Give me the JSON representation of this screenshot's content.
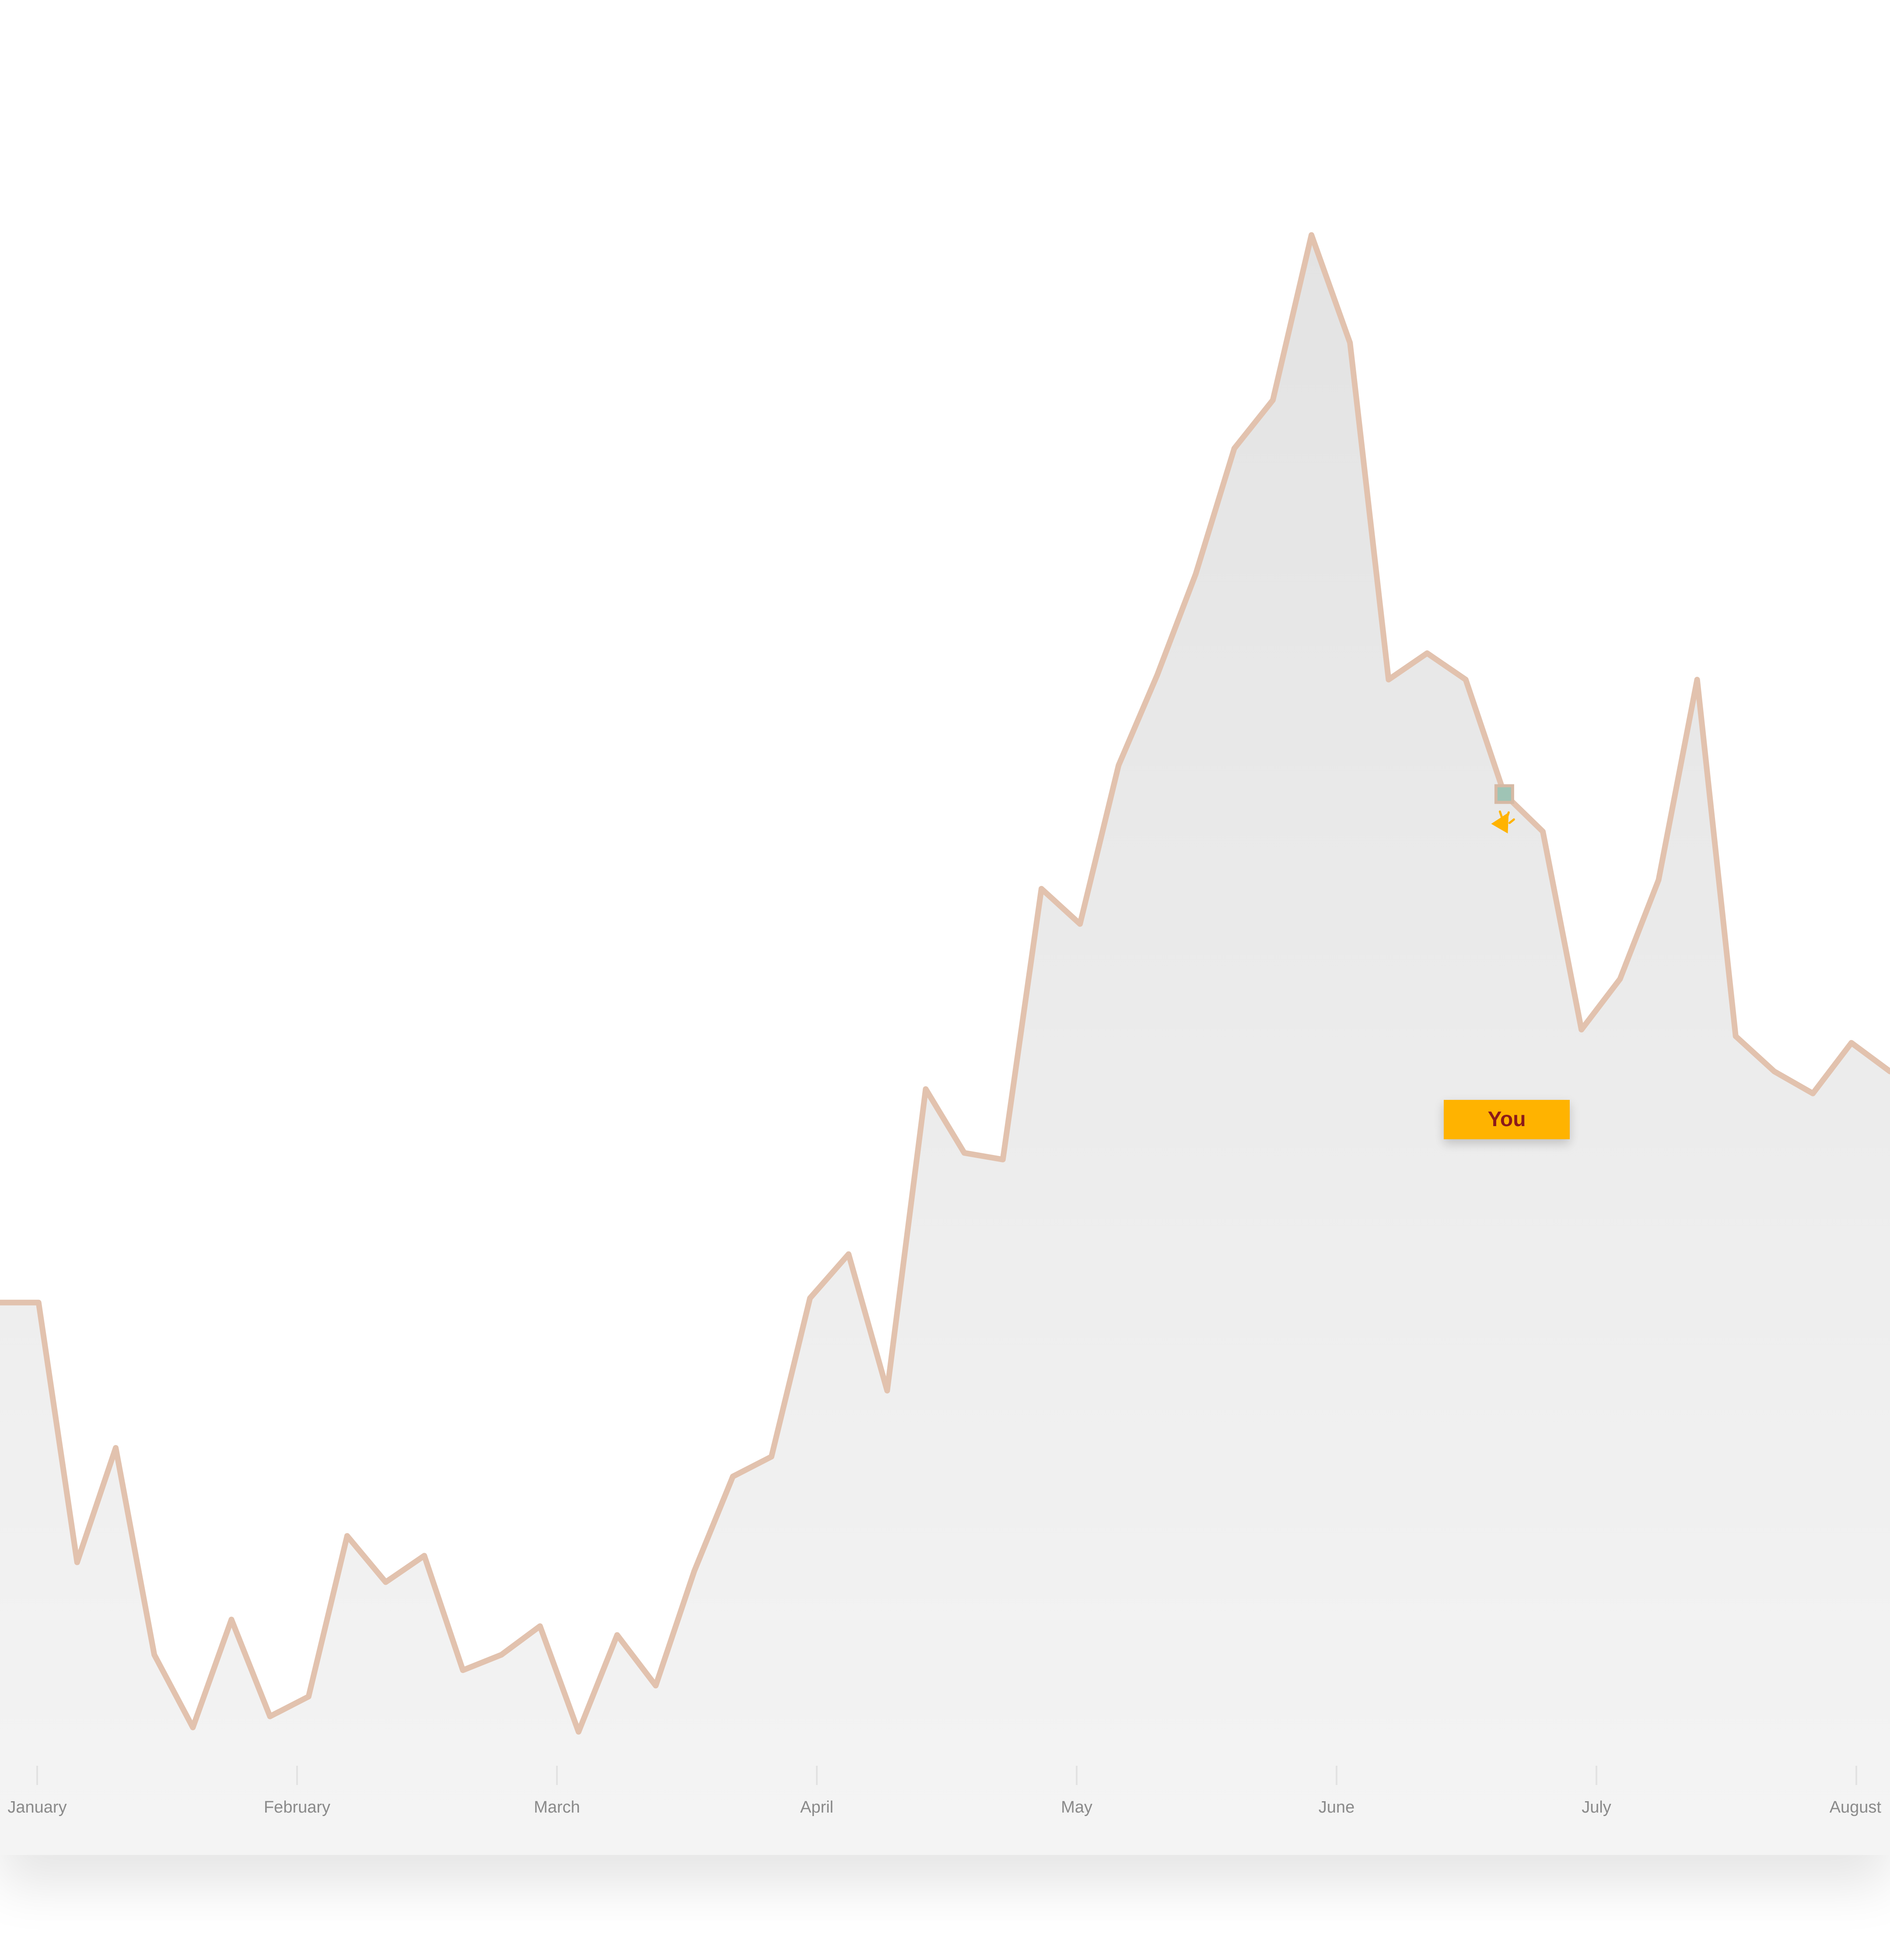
{
  "chart_data": {
    "type": "area",
    "x_axis": {
      "ticks": [
        "January",
        "February",
        "March",
        "April",
        "May",
        "June",
        "July",
        "August"
      ]
    },
    "series": [
      {
        "values": [
          76.3,
          76.3,
          64.5,
          69.7,
          60.3,
          57.0,
          61.9,
          57.5,
          58.4,
          65.7,
          63.6,
          64.8,
          59.6,
          60.3,
          61.6,
          56.8,
          61.2,
          58.9,
          64.1,
          68.4,
          69.3,
          76.5,
          78.5,
          72.3,
          86.0,
          83.1,
          82.8,
          95.1,
          93.5,
          100.7,
          104.8,
          109.4,
          115.1,
          117.3,
          124.8,
          119.9,
          104.6,
          105.8,
          104.6,
          99.4,
          97.7,
          88.7,
          91.0,
          95.5,
          104.6,
          88.4,
          86.8,
          85.8,
          88.1,
          86.8
        ]
      }
    ],
    "colors": {
      "line": "#e2c2ae",
      "area_top": "#e3e3e3",
      "area_bottom": "#f4f4f4",
      "marker_fill": "#9fc4b5",
      "marker_stroke": "#d6b9a4",
      "highlight": "#ffb300",
      "highlight_text": "#8b1a1a"
    },
    "highlight": {
      "index": 39,
      "label": "You"
    },
    "grid": false,
    "legend": "none"
  }
}
